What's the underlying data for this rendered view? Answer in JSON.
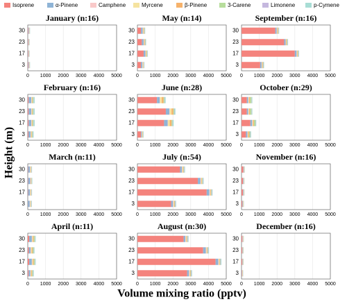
{
  "chart_data": {
    "type": "bar",
    "orientation": "horizontal",
    "stacked": true,
    "xlabel": "Volume mixing ratio (pptv)",
    "ylabel": "Height (m)",
    "categories": [
      "30",
      "23",
      "17",
      "3"
    ],
    "xlim": [
      0,
      5000
    ],
    "xticks": [
      0,
      1000,
      2000,
      3000,
      4000,
      5000
    ],
    "grid": true,
    "series": [
      {
        "name": "Isoprene",
        "color": "#f4837d"
      },
      {
        "name": "α-Pinene",
        "color": "#8fb4d6"
      },
      {
        "name": "Camphene",
        "color": "#f9c9c9"
      },
      {
        "name": "Myrcene",
        "color": "#f5e3a0"
      },
      {
        "name": "β-Pinene",
        "color": "#f6b26b"
      },
      {
        "name": "3-Carene",
        "color": "#b7dd9c"
      },
      {
        "name": "Limonene",
        "color": "#c5b8de"
      },
      {
        "name": "p-Cymene",
        "color": "#a8ddd5"
      }
    ],
    "panels": [
      {
        "title": "January (n:16)",
        "values": [
          [
            30,
            20,
            20,
            30
          ],
          [
            40,
            30,
            30,
            40
          ],
          [
            10,
            10,
            10,
            10
          ],
          [
            10,
            10,
            10,
            10
          ],
          [
            10,
            10,
            10,
            10
          ],
          [
            10,
            10,
            10,
            10
          ],
          [
            10,
            10,
            10,
            10
          ],
          [
            10,
            10,
            10,
            10
          ]
        ]
      },
      {
        "title": "May (n:14)",
        "values": [
          [
            200,
            250,
            350,
            200
          ],
          [
            100,
            100,
            100,
            80
          ],
          [
            20,
            20,
            20,
            20
          ],
          [
            20,
            20,
            20,
            20
          ],
          [
            30,
            30,
            30,
            20
          ],
          [
            30,
            30,
            30,
            20
          ],
          [
            20,
            20,
            20,
            20
          ],
          [
            20,
            20,
            20,
            20
          ]
        ]
      },
      {
        "title": "September (n:16)",
        "values": [
          [
            1900,
            2400,
            3000,
            1050
          ],
          [
            80,
            80,
            100,
            80
          ],
          [
            20,
            20,
            20,
            20
          ],
          [
            20,
            20,
            20,
            20
          ],
          [
            30,
            30,
            30,
            30
          ],
          [
            30,
            30,
            30,
            30
          ],
          [
            20,
            20,
            20,
            20
          ],
          [
            20,
            20,
            20,
            20
          ]
        ]
      },
      {
        "title": "February (n:16)",
        "values": [
          [
            50,
            50,
            50,
            40
          ],
          [
            150,
            150,
            150,
            120
          ],
          [
            20,
            20,
            20,
            20
          ],
          [
            20,
            20,
            20,
            20
          ],
          [
            30,
            30,
            30,
            30
          ],
          [
            50,
            50,
            50,
            40
          ],
          [
            20,
            20,
            20,
            20
          ],
          [
            50,
            50,
            50,
            40
          ]
        ]
      },
      {
        "title": "June (n:28)",
        "values": [
          [
            1100,
            1600,
            1500,
            200
          ],
          [
            150,
            200,
            200,
            50
          ],
          [
            20,
            20,
            20,
            10
          ],
          [
            100,
            100,
            100,
            20
          ],
          [
            100,
            100,
            100,
            20
          ],
          [
            50,
            50,
            50,
            20
          ],
          [
            20,
            20,
            20,
            10
          ],
          [
            50,
            50,
            50,
            20
          ]
        ]
      },
      {
        "title": "October (n:29)",
        "values": [
          [
            300,
            300,
            500,
            250
          ],
          [
            80,
            80,
            100,
            80
          ],
          [
            20,
            20,
            20,
            20
          ],
          [
            30,
            30,
            30,
            30
          ],
          [
            50,
            50,
            50,
            50
          ],
          [
            80,
            80,
            80,
            60
          ],
          [
            20,
            20,
            20,
            20
          ],
          [
            30,
            30,
            30,
            30
          ]
        ]
      },
      {
        "title": "March (n:11)",
        "values": [
          [
            20,
            20,
            20,
            10
          ],
          [
            100,
            120,
            100,
            100
          ],
          [
            20,
            20,
            20,
            20
          ],
          [
            20,
            20,
            20,
            20
          ],
          [
            20,
            20,
            20,
            20
          ],
          [
            20,
            20,
            20,
            20
          ],
          [
            20,
            20,
            20,
            20
          ],
          [
            20,
            20,
            20,
            20
          ]
        ]
      },
      {
        "title": "July (n:54)",
        "values": [
          [
            2400,
            3400,
            3900,
            1900
          ],
          [
            100,
            150,
            150,
            100
          ],
          [
            30,
            30,
            30,
            30
          ],
          [
            30,
            30,
            30,
            30
          ],
          [
            30,
            30,
            30,
            30
          ],
          [
            30,
            30,
            30,
            30
          ],
          [
            30,
            30,
            30,
            30
          ],
          [
            30,
            30,
            30,
            30
          ]
        ]
      },
      {
        "title": "November (n:16)",
        "values": [
          [
            100,
            80,
            80,
            50
          ],
          [
            30,
            30,
            30,
            30
          ],
          [
            10,
            10,
            10,
            10
          ],
          [
            10,
            10,
            10,
            10
          ],
          [
            10,
            10,
            10,
            10
          ],
          [
            10,
            10,
            10,
            10
          ],
          [
            10,
            10,
            10,
            10
          ],
          [
            10,
            10,
            10,
            10
          ]
        ]
      },
      {
        "title": "April (n:11)",
        "values": [
          [
            80,
            60,
            80,
            50
          ],
          [
            150,
            100,
            150,
            100
          ],
          [
            20,
            20,
            20,
            20
          ],
          [
            40,
            40,
            40,
            30
          ],
          [
            50,
            50,
            50,
            40
          ],
          [
            60,
            60,
            60,
            50
          ],
          [
            20,
            20,
            20,
            20
          ],
          [
            30,
            30,
            30,
            30
          ]
        ]
      },
      {
        "title": "August (n:30)",
        "values": [
          [
            2600,
            3700,
            4400,
            2800
          ],
          [
            100,
            150,
            150,
            100
          ],
          [
            30,
            30,
            30,
            30
          ],
          [
            30,
            30,
            30,
            30
          ],
          [
            30,
            30,
            30,
            30
          ],
          [
            30,
            30,
            30,
            30
          ],
          [
            30,
            30,
            30,
            30
          ],
          [
            30,
            30,
            30,
            30
          ]
        ]
      },
      {
        "title": "December (n:16)",
        "values": [
          [
            50,
            40,
            40,
            20
          ],
          [
            20,
            20,
            20,
            20
          ],
          [
            10,
            10,
            10,
            10
          ],
          [
            10,
            10,
            10,
            10
          ],
          [
            10,
            10,
            10,
            10
          ],
          [
            10,
            10,
            10,
            10
          ],
          [
            10,
            10,
            10,
            10
          ],
          [
            10,
            10,
            10,
            10
          ]
        ]
      }
    ]
  }
}
